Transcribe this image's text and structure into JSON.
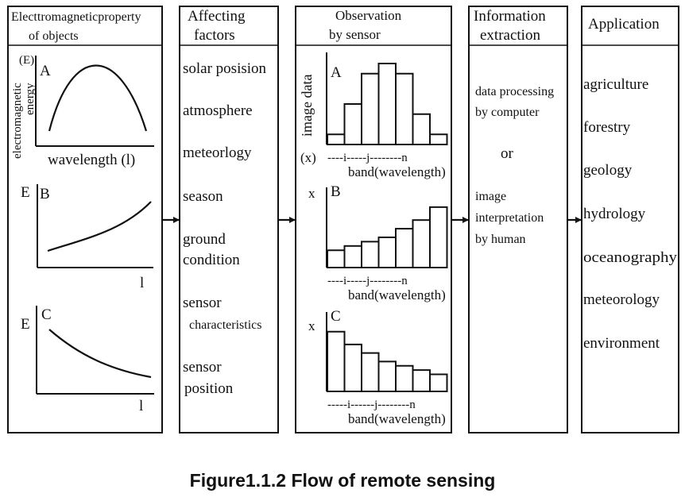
{
  "panels": {
    "objects": {
      "header": [
        "Electtromagneticproperty",
        "of objects"
      ],
      "plots": [
        {
          "letter": "A",
          "ylabel": "E",
          "ylabel_paren": "(E)",
          "yaxis_title": [
            "electromagnetic",
            "energy"
          ],
          "xlabel": "wavelength  (l)",
          "curve": "peak"
        },
        {
          "letter": "B",
          "ylabel": "E",
          "xlabel": "l",
          "curve": "increasing"
        },
        {
          "letter": "C",
          "ylabel": "E",
          "xlabel": "l",
          "curve": "decreasing"
        }
      ]
    },
    "factors": {
      "header": [
        "Affecting",
        "factors"
      ],
      "items": [
        {
          "lines": [
            "solar posision"
          ]
        },
        {
          "lines": [
            "atmosphere"
          ]
        },
        {
          "lines": [
            "meteorlogy"
          ]
        },
        {
          "lines": [
            "season"
          ]
        },
        {
          "lines": [
            "ground",
            "condition"
          ]
        },
        {
          "lines": [
            "sensor",
            "characteristics"
          ]
        },
        {
          "lines": [
            "sensor",
            "position"
          ]
        }
      ]
    },
    "observation": {
      "header": [
        "Observation",
        "by  sensor"
      ],
      "yaxis_title": "image data",
      "histograms": [
        {
          "letter": "A",
          "ylabel": "(x)",
          "values": [
            1,
            4,
            7,
            8,
            7,
            3,
            1
          ],
          "ticks": "----i-----j--------n",
          "xlabel": "band(wavelength)"
        },
        {
          "letter": "B",
          "ylabel": "x",
          "values": [
            2,
            2.5,
            3,
            3.5,
            4.5,
            5.5,
            7
          ],
          "ticks": "----i-----j--------n",
          "xlabel": "band(wavelength)"
        },
        {
          "letter": "C",
          "ylabel": "x",
          "values": [
            7,
            5.5,
            4.5,
            3.5,
            3,
            2.5,
            2
          ],
          "ticks": "-----i------j--------n",
          "xlabel": "band(wavelength)"
        }
      ]
    },
    "extraction": {
      "header": [
        "Information",
        "extraction"
      ],
      "block1": [
        "data processing",
        "by computer"
      ],
      "or": "or",
      "block2": [
        "image",
        "interpretation",
        "by human"
      ]
    },
    "application": {
      "header": [
        "Application"
      ],
      "items": [
        "agriculture",
        "forestry",
        "geology",
        "hydrology",
        "oceanography",
        "meteorology",
        "environment"
      ]
    }
  },
  "caption": "Figure1.1.2 Flow of remote sensing"
}
